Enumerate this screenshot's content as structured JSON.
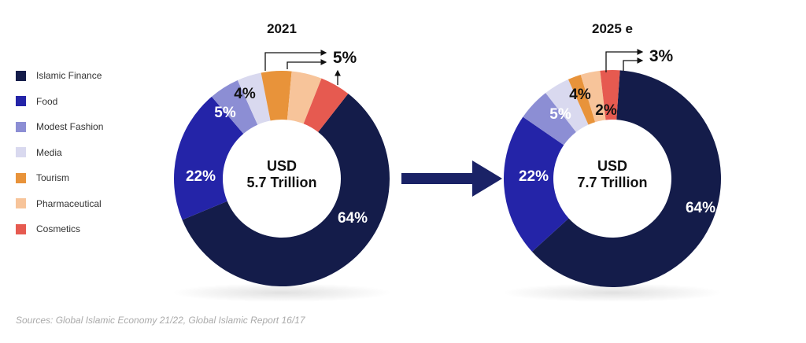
{
  "legend": [
    {
      "label": "Islamic Finance",
      "color": "#141c4a"
    },
    {
      "label": "Food",
      "color": "#2424a8"
    },
    {
      "label": "Modest Fashion",
      "color": "#8c8ed4"
    },
    {
      "label": "Media",
      "color": "#d9d9ef"
    },
    {
      "label": "Tourism",
      "color": "#e8933a"
    },
    {
      "label": "Pharmaceutical",
      "color": "#f7c49a"
    },
    {
      "label": "Cosmetics",
      "color": "#e65a50"
    }
  ],
  "chart_data": [
    {
      "type": "pie",
      "title": "2021",
      "center_label": [
        "USD",
        "5.7 Trillion"
      ],
      "categories": [
        "Islamic Finance",
        "Food",
        "Modest Fashion",
        "Media",
        "Tourism",
        "Pharmaceutical",
        "Cosmetics"
      ],
      "values": [
        64,
        22,
        5,
        4,
        5,
        5,
        5
      ],
      "labels": [
        "64%",
        "22%",
        "5%",
        "4%",
        "5%"
      ]
    },
    {
      "type": "pie",
      "title": "2025 e",
      "center_label": [
        "USD",
        "7.7 Trillion"
      ],
      "categories": [
        "Islamic Finance",
        "Food",
        "Modest Fashion",
        "Media",
        "Tourism",
        "Pharmaceutical",
        "Cosmetics"
      ],
      "values": [
        64,
        22,
        5,
        4,
        2,
        3,
        3
      ],
      "labels": [
        "64%",
        "22%",
        "5%",
        "4%",
        "2%",
        "3%"
      ]
    }
  ],
  "arrow_color": "#1a2266",
  "source": "Sources: Global Islamic Economy 21/22, Global Islamic Report 16/17"
}
